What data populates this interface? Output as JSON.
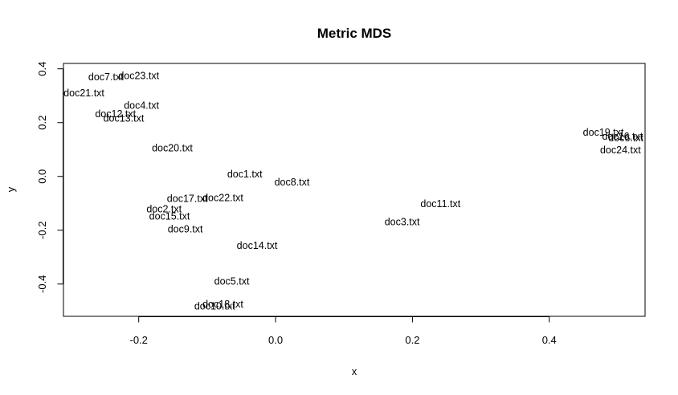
{
  "chart_data": {
    "type": "scatter",
    "title": "Metric MDS",
    "xlabel": "x",
    "ylabel": "y",
    "xlim": [
      -0.31,
      0.54
    ],
    "ylim": [
      -0.52,
      0.42
    ],
    "xticks": [
      {
        "value": -0.2,
        "label": "-0.2"
      },
      {
        "value": 0.0,
        "label": "0.0"
      },
      {
        "value": 0.2,
        "label": "0.2"
      },
      {
        "value": 0.4,
        "label": "0.4"
      }
    ],
    "yticks": [
      {
        "value": -0.4,
        "label": "-0.4"
      },
      {
        "value": -0.2,
        "label": "-0.2"
      },
      {
        "value": 0.0,
        "label": "0.0"
      },
      {
        "value": 0.2,
        "label": "0.2"
      },
      {
        "value": 0.4,
        "label": "0.4"
      }
    ],
    "grid": false,
    "points": [
      {
        "label": "doc7.txt",
        "x": -0.248,
        "y": 0.367
      },
      {
        "label": "doc23.txt",
        "x": -0.2,
        "y": 0.372
      },
      {
        "label": "doc21.txt",
        "x": -0.28,
        "y": 0.307
      },
      {
        "label": "doc4.txt",
        "x": -0.196,
        "y": 0.261
      },
      {
        "label": "doc12.txt",
        "x": -0.234,
        "y": 0.23
      },
      {
        "label": "doc13.txt",
        "x": -0.222,
        "y": 0.214
      },
      {
        "label": "doc20.txt",
        "x": -0.151,
        "y": 0.103
      },
      {
        "label": "doc1.txt",
        "x": -0.045,
        "y": 0.006
      },
      {
        "label": "doc8.txt",
        "x": 0.024,
        "y": -0.024
      },
      {
        "label": "doc17.txt",
        "x": -0.129,
        "y": -0.085
      },
      {
        "label": "doc22.txt",
        "x": -0.077,
        "y": -0.082
      },
      {
        "label": "doc2.txt",
        "x": -0.163,
        "y": -0.124
      },
      {
        "label": "doc15.txt",
        "x": -0.155,
        "y": -0.151
      },
      {
        "label": "doc9.txt",
        "x": -0.132,
        "y": -0.198
      },
      {
        "label": "doc14.txt",
        "x": -0.027,
        "y": -0.26
      },
      {
        "label": "doc5.txt",
        "x": -0.064,
        "y": -0.393
      },
      {
        "label": "doc18.txt",
        "x": -0.077,
        "y": -0.477
      },
      {
        "label": "doc10.txt",
        "x": -0.089,
        "y": -0.485
      },
      {
        "label": "doc11.txt",
        "x": 0.241,
        "y": -0.104
      },
      {
        "label": "doc3.txt",
        "x": 0.185,
        "y": -0.171
      },
      {
        "label": "doc19.txt",
        "x": 0.479,
        "y": 0.162
      },
      {
        "label": "doc16.txt",
        "x": 0.507,
        "y": 0.147
      },
      {
        "label": "doc6.txt",
        "x": 0.512,
        "y": 0.14
      },
      {
        "label": "doc24.txt",
        "x": 0.504,
        "y": 0.096
      }
    ]
  }
}
